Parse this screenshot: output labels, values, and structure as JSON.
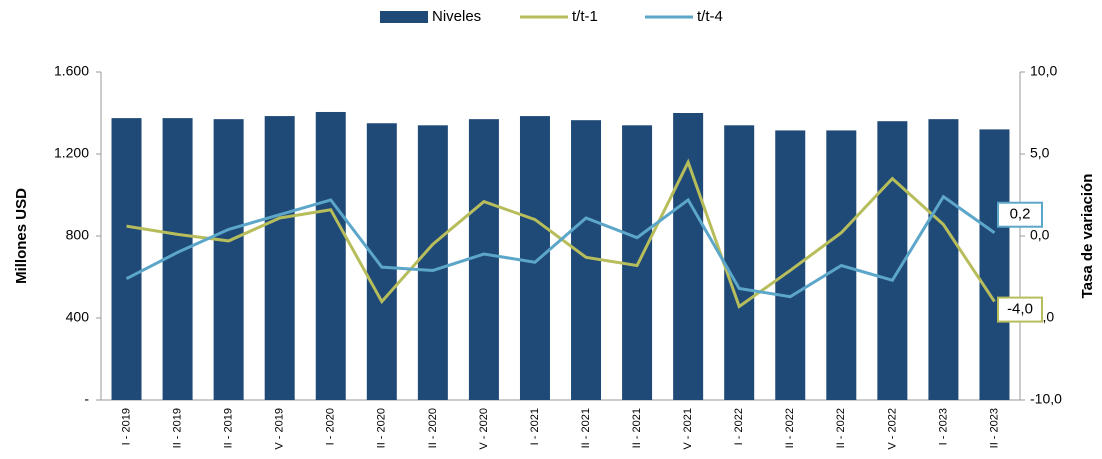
{
  "chart_data": {
    "type": "bar_line",
    "legend": "top",
    "y_label": "Millones USD",
    "y2_label": "Tasa de variación",
    "categories": [
      "I - 2019",
      "II - 2019",
      "II - 2019",
      "V - 2019",
      "I - 2020",
      "II - 2020",
      "II - 2020",
      "V - 2020",
      "I - 2021",
      "II - 2021",
      "II - 2021",
      "V - 2021",
      "I - 2022",
      "II - 2022",
      "II - 2022",
      "V - 2022",
      "I - 2023",
      "II - 2023"
    ],
    "series": [
      {
        "name": "Niveles",
        "type": "bar",
        "color": "#1f4a78",
        "values": [
          1375,
          1375,
          1370,
          1385,
          1405,
          1350,
          1340,
          1370,
          1385,
          1365,
          1340,
          1400,
          1340,
          1315,
          1315,
          1360,
          1370,
          1320
        ]
      },
      {
        "name": "t/t-1",
        "type": "line",
        "axis": "y2",
        "color": "#b7bd5b",
        "values": [
          0.6,
          0.1,
          -0.3,
          1.1,
          1.6,
          -4.0,
          -0.5,
          2.1,
          1.0,
          -1.3,
          -1.8,
          4.5,
          -4.3,
          -2.1,
          0.2,
          3.5,
          0.7,
          -4.0
        ],
        "value_labels": [
          null,
          null,
          null,
          null,
          null,
          null,
          null,
          null,
          null,
          null,
          null,
          null,
          null,
          null,
          null,
          null,
          null,
          "-4,0"
        ]
      },
      {
        "name": "t/t-4",
        "type": "line",
        "axis": "y2",
        "color": "#5ba6c9",
        "values": [
          -2.6,
          -1.0,
          0.4,
          1.3,
          2.2,
          -1.9,
          -2.1,
          -1.1,
          -1.6,
          1.1,
          -0.1,
          2.2,
          -3.2,
          -3.7,
          -1.8,
          -2.7,
          2.4,
          0.2
        ],
        "value_labels": [
          null,
          null,
          null,
          null,
          null,
          null,
          null,
          null,
          null,
          null,
          null,
          null,
          null,
          null,
          null,
          null,
          null,
          "0,2"
        ]
      }
    ],
    "ylim": [
      0,
      1600
    ],
    "yticks": [
      {
        "value": 0,
        "label": "-"
      },
      400,
      800,
      {
        "value": 1200,
        "label": "1.200"
      },
      {
        "value": 1600,
        "label": "1.600"
      }
    ],
    "y2lim": [
      -10,
      10
    ],
    "y2ticks": [
      {
        "value": -10,
        "label": "-10,0"
      },
      {
        "value": -5,
        "label": "-5,0"
      },
      {
        "value": 0,
        "label": "0,0"
      },
      {
        "value": 5,
        "label": "5,0"
      },
      {
        "value": 10,
        "label": "10,0"
      }
    ]
  }
}
